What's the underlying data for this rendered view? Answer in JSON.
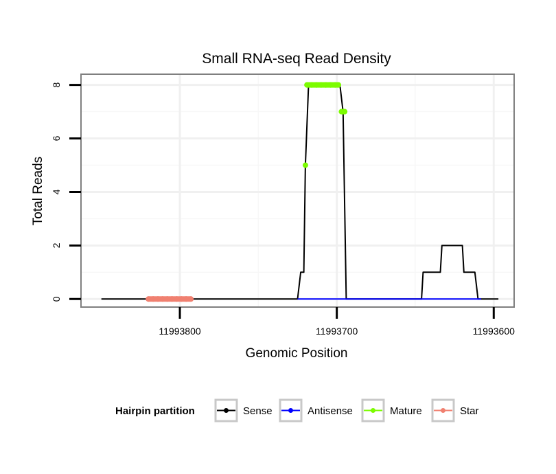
{
  "chart_data": {
    "type": "line",
    "title": "Small RNA-seq Read Density",
    "xlabel": "Genomic Position",
    "ylabel": "Total Reads",
    "xlim": [
      11993863,
      11993587
    ],
    "ylim": [
      -0.3,
      8.4
    ],
    "x_reversed": true,
    "x_ticks": [
      11993800,
      11993700,
      11993600
    ],
    "x_tick_labels": [
      "11993800",
      "11993700",
      "11993600"
    ],
    "y_ticks": [
      0,
      2,
      4,
      6,
      8
    ],
    "y_tick_labels": [
      "0",
      "2",
      "4",
      "6",
      "8"
    ],
    "grid": true,
    "legend": {
      "title": "Hairpin partition",
      "position": "bottom",
      "entries": [
        {
          "label": "Sense",
          "color": "#000000"
        },
        {
          "label": "Antisense",
          "color": "#0000ff"
        },
        {
          "label": "Mature",
          "color": "#7cfc00"
        },
        {
          "label": "Star",
          "color": "#f08070"
        }
      ]
    },
    "series": [
      {
        "name": "Sense",
        "color": "#000000",
        "x": [
          11993850,
          11993725,
          11993723,
          11993721,
          11993720,
          11993718,
          11993698,
          11993696,
          11993694,
          11993646,
          11993645,
          11993634,
          11993633,
          11993620,
          11993619,
          11993612,
          11993610,
          11993608,
          11993597
        ],
        "y": [
          0,
          0,
          1,
          1,
          5,
          8,
          8,
          7,
          0,
          0,
          1,
          1,
          2,
          2,
          1,
          1,
          0,
          0,
          0
        ]
      },
      {
        "name": "Antisense",
        "color": "#0000ff",
        "x": [
          11993725,
          11993694,
          11993646,
          11993608
        ],
        "y": [
          0,
          0,
          0,
          0
        ]
      },
      {
        "name": "Mature",
        "color": "#7cfc00",
        "x": [
          11993720,
          11993719,
          11993716,
          11993713,
          11993710,
          11993707,
          11993704,
          11993701,
          11993699,
          11993697,
          11993695
        ],
        "y": [
          5,
          8,
          8,
          8,
          8,
          8,
          8,
          8,
          8,
          7,
          7
        ]
      },
      {
        "name": "Star",
        "color": "#f08070",
        "x": [
          11993820,
          11993817,
          11993814,
          11993811,
          11993808,
          11993805,
          11993802,
          11993799,
          11993796,
          11993793
        ],
        "y": [
          0,
          0,
          0,
          0,
          0,
          0,
          0,
          0,
          0,
          0
        ]
      }
    ]
  }
}
